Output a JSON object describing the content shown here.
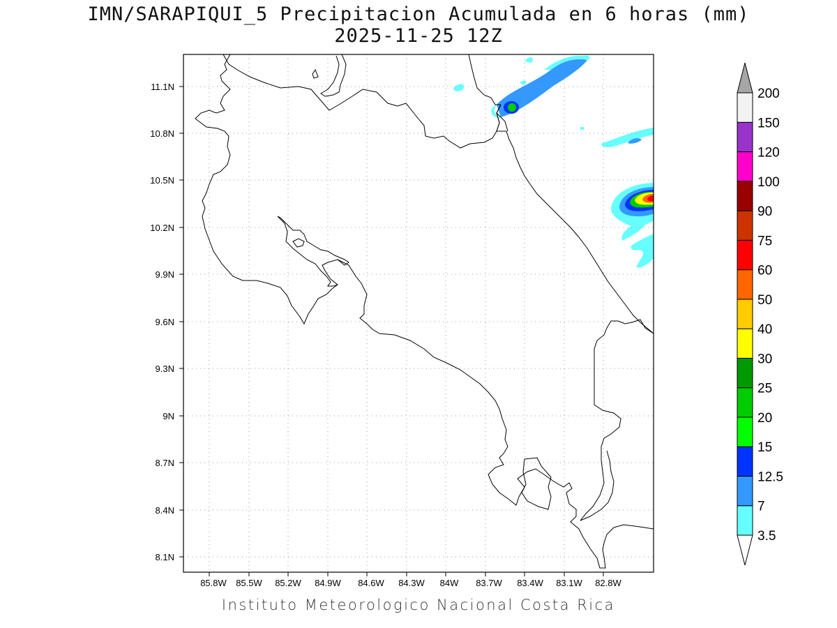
{
  "title": {
    "line1": "IMN/SARAPIQUI_5 Precipitacion Acumulada en 6 horas (mm)",
    "line2": "2025-11-25 12Z"
  },
  "footer": "Instituto Meteorologico Nacional Costa Rica",
  "map": {
    "lon_labels": [
      "85.8W",
      "85.5W",
      "85.2W",
      "84.9W",
      "84.6W",
      "84.3W",
      "84W",
      "83.7W",
      "83.4W",
      "83.1W",
      "82.8W"
    ],
    "lat_labels": [
      "11.1N",
      "10.8N",
      "10.5N",
      "10.2N",
      "9.9N",
      "9.6N",
      "9.3N",
      "9N",
      "8.7N",
      "8.4N",
      "8.1N"
    ],
    "grid": true
  },
  "colorbar": {
    "labels": [
      "3.5",
      "7",
      "12.5",
      "15",
      "20",
      "25",
      "30",
      "40",
      "50",
      "60",
      "75",
      "90",
      "100",
      "120",
      "150",
      "200"
    ],
    "colors": [
      "#66ffff",
      "#3399ff",
      "#0033ff",
      "#00ff00",
      "#00cc00",
      "#009900",
      "#ffff00",
      "#ffcc00",
      "#ff6600",
      "#ff0000",
      "#cc3300",
      "#990000",
      "#ff00cc",
      "#9933cc",
      "#f2f2f2"
    ],
    "over_color": "#a6a6a6",
    "under_color": "#ffffff"
  }
}
